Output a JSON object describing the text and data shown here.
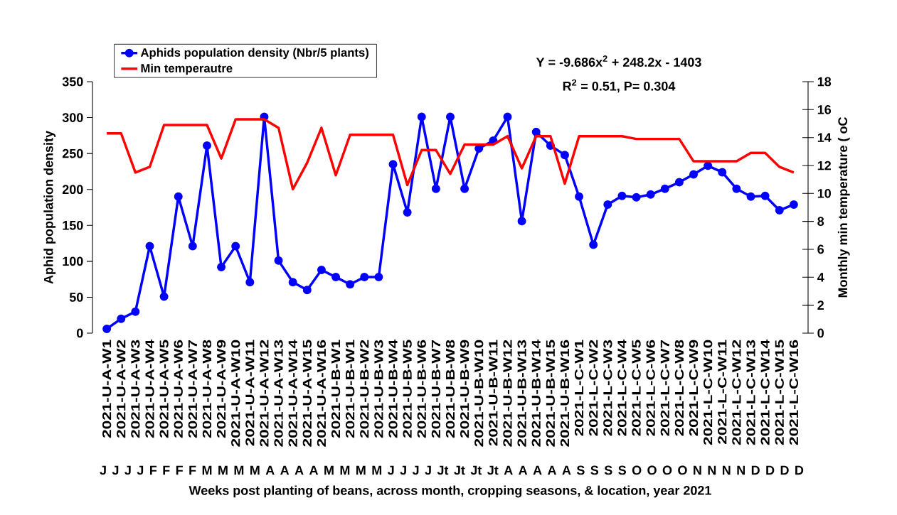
{
  "chart_data": {
    "type": "line",
    "xlabel": "Weeks post planting of beans,  across month, cropping seasons, & location, year 2021",
    "ylabel": "Aphid population density",
    "y2label": "Monthly min temperature ( oC",
    "categories": [
      "2021-U-A-W1",
      "2021-U-A-W2",
      "2021-U-A-W3",
      "2021-U-A-W4",
      "2021-U-A-W5",
      "2021-U-A-W6",
      "2021-U-A-W7",
      "2021-U-A-W8",
      "2021-U-A-W9",
      "2021-U-A-W10",
      "2021-U-A-W11",
      "2021-U-A-W12",
      "2021-U-A-W13",
      "2021-U-A-W14",
      "2021-U-A-W15",
      "2021-U-A-W16",
      "2021-U-B-W1",
      "2021-U-B-W1",
      "2021-U-B-W2",
      "2021-U-B-W3",
      "2021-U-B-W4",
      "2021-U-B-W5",
      "2021-U-B-W6",
      "2021-U-B-W7",
      "2021-U-B-W8",
      "2021-U-B-W9",
      "2021-U-B-W10",
      "2021-U-B-W11",
      "2021-U-B-W12",
      "2021-U-B-W13",
      "2021-U-B-W14",
      "2021-U-B-W15",
      "2021-U-B-W16",
      "2021-L-C-W1",
      "2021-L-C-W2",
      "2021-L-C-W3",
      "2021-L-C-W4",
      "2021-L-C-W5",
      "2021-L-C-W6",
      "2021-L-C-W7",
      "2021-L-C-W8",
      "2021-L-C-W9",
      "2021-L-C-W10",
      "2021-L-C-W11",
      "2021-L-C-W12",
      "2021-L-C-W13",
      "2021-L-C-W14",
      "2021-L-C-W15",
      "2021-L-C-W16"
    ],
    "ylim": [
      0,
      350
    ],
    "yticks": [
      0,
      50,
      100,
      150,
      200,
      250,
      300,
      350
    ],
    "y2lim": [
      0,
      18
    ],
    "y2ticks": [
      0,
      2,
      4,
      6,
      8,
      10,
      12,
      14,
      16,
      18
    ],
    "legend": "top left",
    "annotations": [
      "Y = -9.686x$^{2}$ + 248.2x - 1403",
      "R$^{2}$ = 0.51, P= 0.304",
      "J J J J F F F F M M M M A A A A M M M M J J J J Jt Jt Jt Jt A A A A A S S S S O O O O N N N N D D D D"
    ],
    "series": [
      {
        "name": "Aphids population density (Nbr/5 plants)",
        "color": "#0000ff",
        "marker": "circle",
        "values": [
          6,
          20,
          30,
          121,
          51,
          190,
          121,
          261,
          92,
          121,
          71,
          301,
          101,
          71,
          60,
          88,
          78,
          68,
          78,
          78,
          235,
          168,
          301,
          201,
          301,
          201,
          257,
          268,
          301,
          156,
          280,
          261,
          248,
          190,
          123,
          179,
          191,
          189,
          193,
          201,
          210,
          221,
          233,
          224,
          201,
          190,
          191,
          171,
          179
        ]
      },
      {
        "name": "Min temperautre",
        "color": "#ff0000",
        "axis": "y2",
        "marker": "none",
        "values": [
          14.3,
          14.3,
          11.5,
          11.9,
          14.9,
          14.9,
          14.9,
          14.9,
          12.5,
          15.3,
          15.3,
          15.3,
          14.7,
          10.3,
          12.2,
          14.7,
          11.3,
          14.2,
          14.2,
          14.2,
          14.2,
          10.6,
          13.1,
          13.1,
          11.4,
          13.5,
          13.5,
          13.5,
          14.1,
          11.8,
          14.1,
          14.1,
          10.7,
          14.1,
          14.1,
          14.1,
          14.1,
          13.9,
          13.9,
          13.9,
          13.9,
          12.3,
          12.3,
          12.3,
          12.3,
          12.9,
          12.9,
          11.9,
          11.5
        ]
      }
    ]
  }
}
